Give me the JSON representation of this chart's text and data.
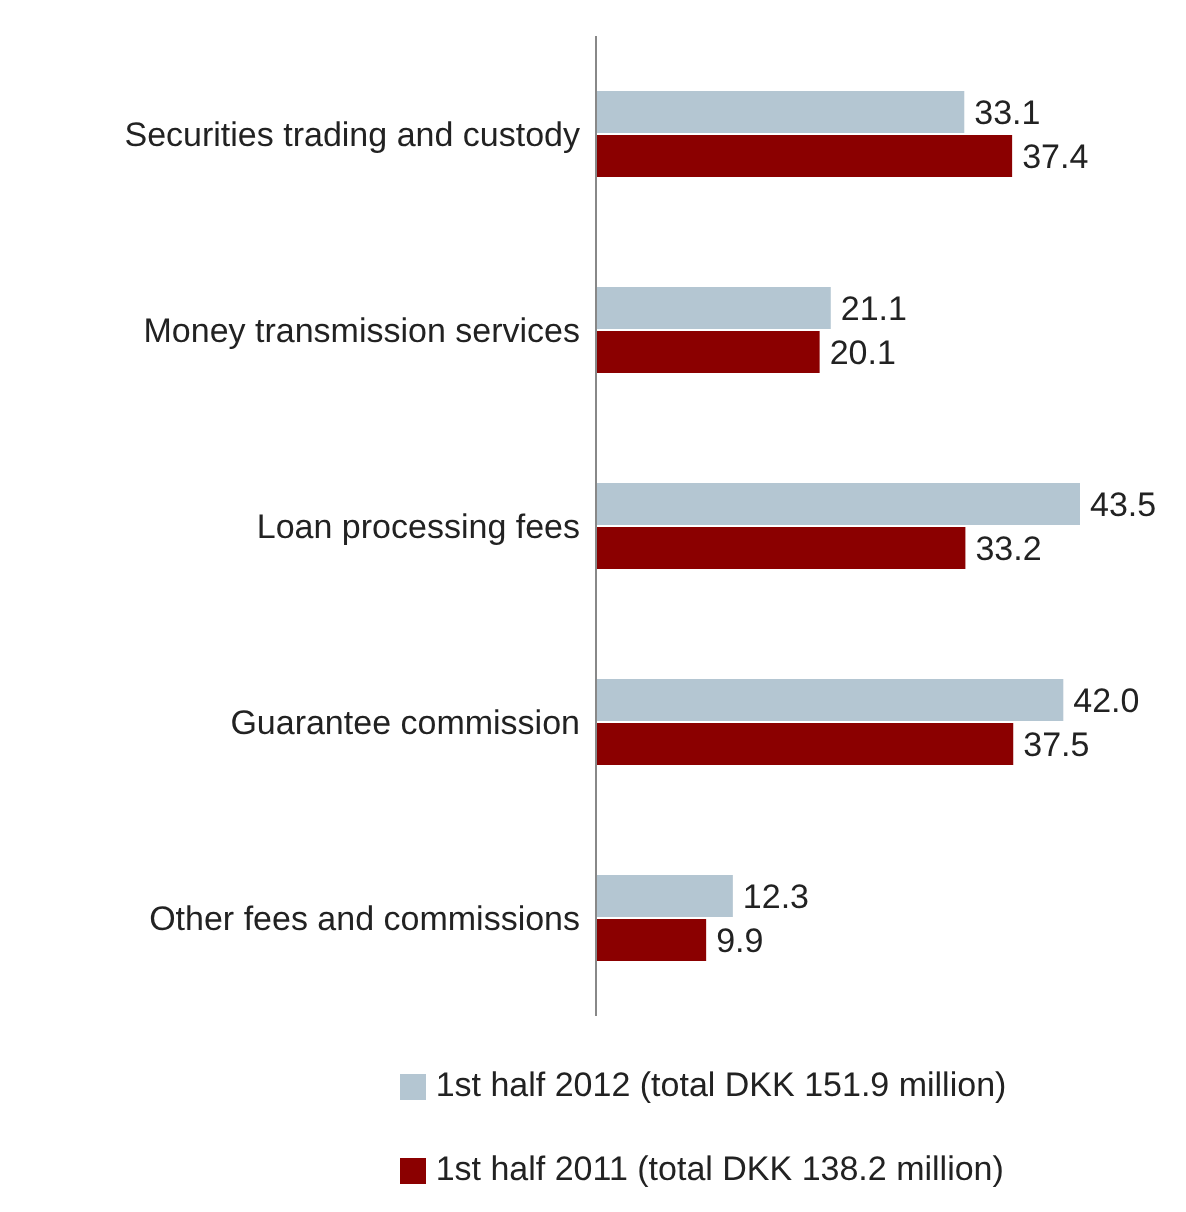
{
  "chart_data": {
    "type": "bar",
    "orientation": "horizontal",
    "categories": [
      "Securities trading and custody",
      "Money transmission services",
      "Loan processing fees",
      "Guarantee commission",
      "Other fees and commissions"
    ],
    "series": [
      {
        "name": "1st half 2012 (total DKK 151.9 million)",
        "color": "#b4c6d2",
        "values": [
          33.1,
          21.1,
          43.5,
          42.0,
          12.3
        ],
        "value_labels": [
          "33.1",
          "21.1",
          "43.5",
          "42.0",
          "12.3"
        ]
      },
      {
        "name": "1st half 2011 (total DKK 138.2 million)",
        "color": "#8b0000",
        "values": [
          37.4,
          20.1,
          33.2,
          37.5,
          9.9
        ],
        "value_labels": [
          "37.4",
          "20.1",
          "33.2",
          "37.5",
          "9.9"
        ]
      }
    ],
    "legend": "bottom"
  }
}
